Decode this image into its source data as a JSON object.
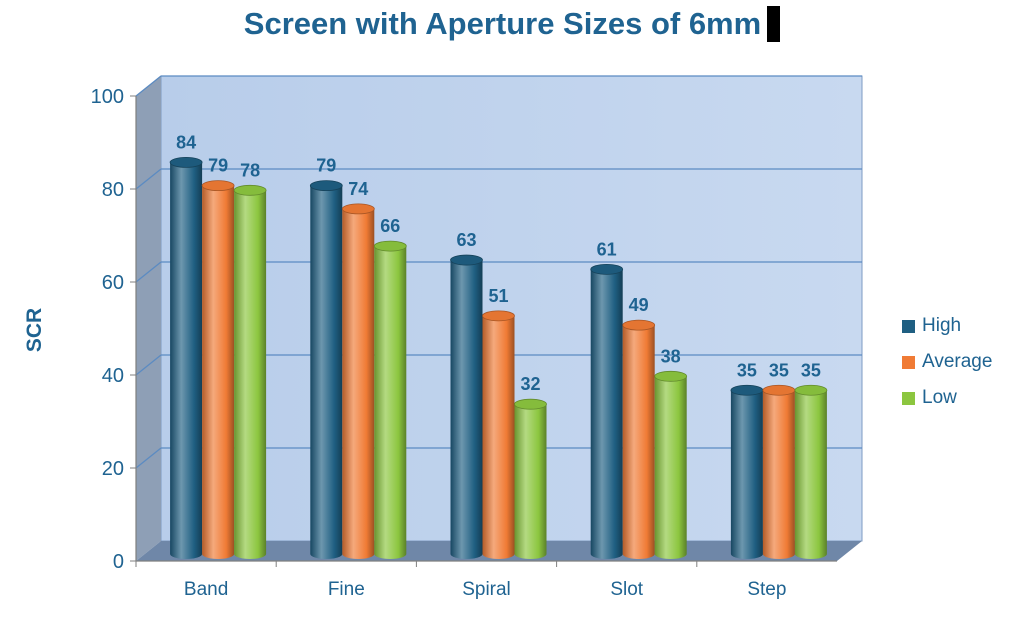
{
  "chart_data": {
    "type": "bar",
    "title": "Screen with Aperture Sizes of 6mm",
    "xlabel": "",
    "ylabel": "SCR",
    "ylim": [
      0,
      100
    ],
    "yticks": [
      0,
      20,
      40,
      60,
      80,
      100
    ],
    "categories": [
      "Band",
      "Fine",
      "Spiral",
      "Slot",
      "Step"
    ],
    "series": [
      {
        "name": "High",
        "values": [
          84,
          79,
          63,
          61,
          35
        ],
        "color": "#1F5F82"
      },
      {
        "name": "Average",
        "values": [
          79,
          74,
          51,
          49,
          35
        ],
        "color": "#F07B35"
      },
      {
        "name": "Low",
        "values": [
          78,
          66,
          32,
          38,
          35
        ],
        "color": "#8CC63F"
      }
    ],
    "grid": true,
    "legend_position": "right",
    "data_labels": true
  }
}
